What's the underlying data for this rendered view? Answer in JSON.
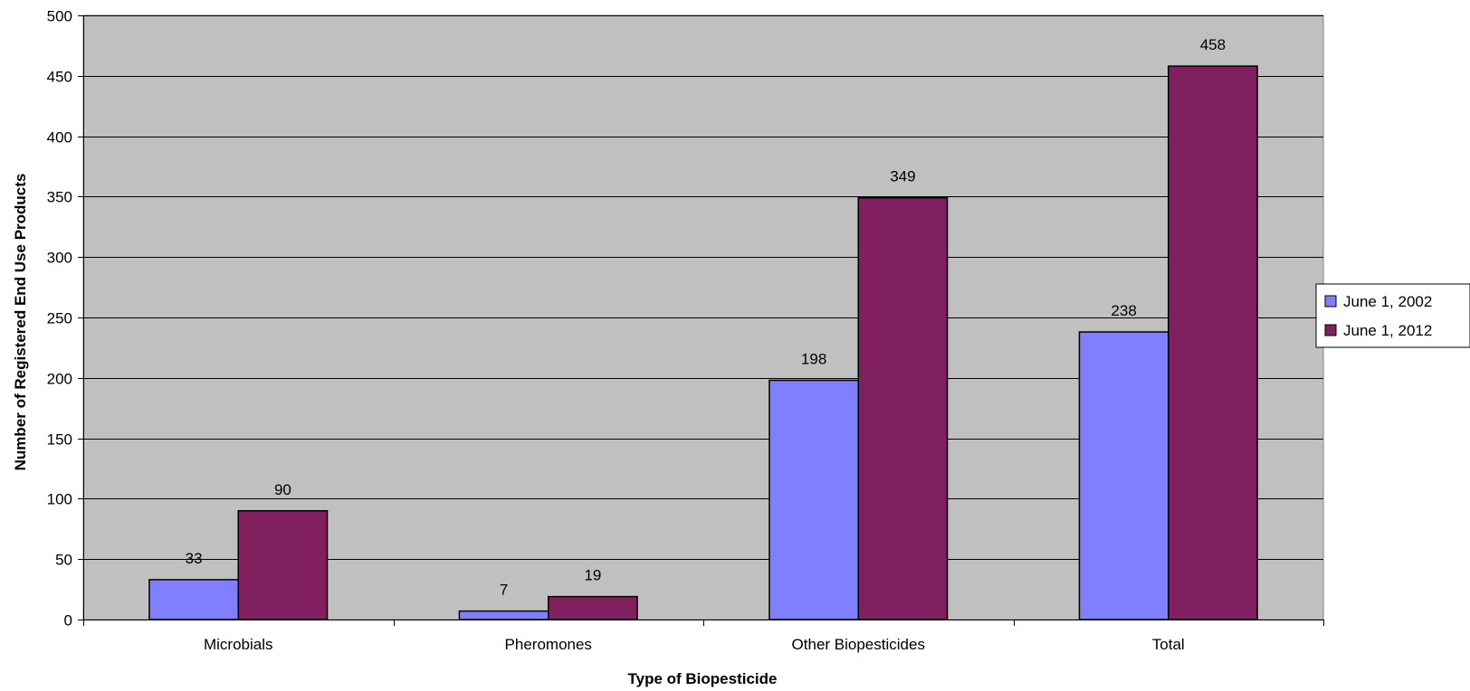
{
  "chart_data": {
    "type": "bar",
    "title": "",
    "xlabel": "Type of Biopesticide",
    "ylabel": "Number of Registered End Use Products",
    "categories": [
      "Microbials",
      "Pheromones",
      "Other Biopesticides",
      "Total"
    ],
    "series": [
      {
        "name": "June 1, 2002",
        "values": [
          33,
          7,
          198,
          238
        ],
        "color": "#8080ff"
      },
      {
        "name": "June 1, 2012",
        "values": [
          90,
          19,
          349,
          458
        ],
        "color": "#80205f"
      }
    ],
    "ylim": [
      0,
      500
    ],
    "yticks": [
      0,
      50,
      100,
      150,
      200,
      250,
      300,
      350,
      400,
      450,
      500
    ],
    "grid": true,
    "plot_background": "#c0c0c0",
    "legend_position": "right",
    "data_labels": true
  }
}
